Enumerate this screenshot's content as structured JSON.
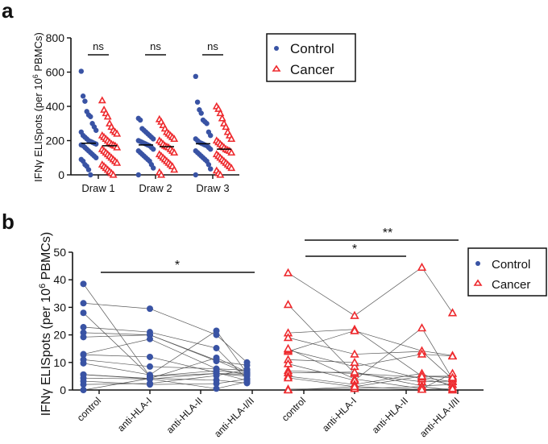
{
  "colors": {
    "control": "#3953a4",
    "cancer": "#ee2a2e",
    "axis": "#111111",
    "line": "#555555"
  },
  "chart_data": [
    {
      "panel": "a",
      "type": "scatter",
      "title": "",
      "ylabel": "IFNγ ELISpots (per 10^6 PBMCs)",
      "ylabel_main": "IFNγ ELISpots (per 10",
      "ylabel_sup": "6",
      "ylabel_end": " PBMCs)",
      "ylim": [
        0,
        800
      ],
      "yticks": [
        "0",
        "200",
        "400",
        "600",
        "800"
      ],
      "categories": [
        "Draw 1",
        "Draw 2",
        "Draw 3"
      ],
      "significance": [
        "ns",
        "ns",
        "ns"
      ],
      "legend": {
        "placement": "top-right",
        "entries": [
          "Control",
          "Cancer"
        ]
      },
      "series": [
        {
          "name": "Control",
          "medians": [
            185,
            175,
            182
          ],
          "values": [
            [
              605,
              460,
              430,
              370,
              350,
              340,
              300,
              280,
              260,
              250,
              230,
              220,
              210,
              200,
              195,
              190,
              185,
              180,
              175,
              170,
              160,
              150,
              140,
              130,
              120,
              110,
              100,
              90,
              80,
              60,
              50,
              30,
              0
            ],
            [
              330,
              320,
              270,
              260,
              250,
              240,
              230,
              220,
              210,
              200,
              195,
              190,
              185,
              180,
              175,
              170,
              160,
              150,
              140,
              130,
              120,
              110,
              100,
              90,
              80,
              60,
              40,
              0
            ],
            [
              575,
              425,
              380,
              360,
              320,
              310,
              300,
              250,
              230,
              210,
              200,
              190,
              185,
              180,
              175,
              170,
              160,
              150,
              140,
              130,
              120,
              110,
              100,
              90,
              80,
              60,
              35,
              0
            ]
          ]
        },
        {
          "name": "Cancer",
          "medians": [
            170,
            165,
            150
          ],
          "values": [
            [
              435,
              380,
              360,
              340,
              300,
              280,
              260,
              250,
              240,
              230,
              220,
              210,
              200,
              190,
              180,
              175,
              170,
              160,
              150,
              140,
              130,
              120,
              110,
              100,
              90,
              80,
              70,
              60,
              50,
              40,
              30,
              20,
              10,
              0
            ],
            [
              325,
              310,
              290,
              270,
              250,
              240,
              230,
              220,
              210,
              200,
              190,
              180,
              170,
              165,
              160,
              150,
              140,
              130,
              120,
              110,
              100,
              90,
              80,
              70,
              60,
              50,
              30,
              15,
              0
            ],
            [
              400,
              385,
              360,
              330,
              300,
              280,
              250,
              230,
              210,
              200,
              190,
              180,
              170,
              160,
              150,
              145,
              140,
              130,
              120,
              110,
              100,
              90,
              80,
              70,
              60,
              50,
              40,
              25,
              10,
              0
            ]
          ]
        }
      ]
    },
    {
      "panel": "b",
      "type": "line",
      "title": "",
      "ylabel": "IFNγ ELISpots (per 10^6 PBMCs)",
      "ylabel_main": "IFNγ ELISpots (per 10",
      "ylabel_sup": "6",
      "ylabel_end": " PBMCs)",
      "ylim": [
        0,
        50
      ],
      "yticks": [
        "0",
        "10",
        "20",
        "30",
        "40",
        "50"
      ],
      "categories": [
        "control",
        "anti-HLA-I",
        "anti-HLA-II",
        "anti-HLA-I/II"
      ],
      "significance": {
        "control_group": [
          "*"
        ],
        "cancer_group": [
          "**",
          "*"
        ]
      },
      "legend": {
        "placement": "right",
        "entries": [
          "Control",
          "Cancer"
        ]
      },
      "series": [
        {
          "name": "Control",
          "subjects": [
            [
              38.5,
              5,
              6,
              5
            ],
            [
              31.5,
              29.5,
              20,
              10
            ],
            [
              28,
              5,
              7,
              6
            ],
            [
              22.8,
              21,
              15.2,
              4
            ],
            [
              20.8,
              20,
              10.8,
              6
            ],
            [
              19.2,
              20,
              10.5,
              9
            ],
            [
              13,
              18.5,
              7.7,
              5.5
            ],
            [
              12.8,
              12,
              6.3,
              3.5
            ],
            [
              11,
              8.5,
              7.7,
              7.2
            ],
            [
              9.7,
              5.5,
              21.5,
              6
            ],
            [
              5.6,
              4.2,
              3.6,
              2.5
            ],
            [
              4.3,
              4,
              0.5,
              3
            ],
            [
              3.2,
              2,
              2.3,
              4
            ],
            [
              2,
              2.4,
              5.2,
              7.5
            ],
            [
              0,
              4.2,
              11.7,
              6.5
            ],
            [
              5.6,
              4,
              6,
              5.7
            ]
          ]
        },
        {
          "name": "Cancer",
          "subjects": [
            [
              42.5,
              27,
              44.5,
              28
            ],
            [
              31,
              6,
              3,
              3.2
            ],
            [
              20.7,
              22,
              5,
              5
            ],
            [
              19,
              13,
              14,
              4
            ],
            [
              14,
              21.5,
              14.2,
              12.5
            ],
            [
              14.5,
              8.5,
              13,
              12.3
            ],
            [
              15,
              4,
              0.5,
              6
            ],
            [
              11,
              10,
              4,
              2
            ],
            [
              9.5,
              3.5,
              22.5,
              4
            ],
            [
              7,
              6,
              4.6,
              3
            ],
            [
              6.2,
              6.5,
              1.5,
              2
            ],
            [
              5,
              2,
              6,
              1
            ],
            [
              0.3,
              0.5,
              1.2,
              0
            ],
            [
              0,
              1.2,
              0.2,
              0.5
            ],
            [
              4.4,
              1.2,
              5,
              4.5
            ]
          ]
        }
      ]
    }
  ],
  "panel_labels": [
    "a",
    "b"
  ]
}
